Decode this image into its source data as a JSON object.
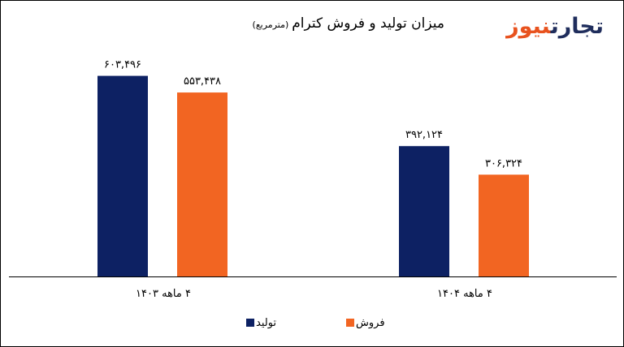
{
  "logo": {
    "part1": "تجارت",
    "part2": "نیوز"
  },
  "chart_data": {
    "type": "bar",
    "title": "میزان تولید و فروش کترام",
    "subtitle": "(مترمربع)",
    "categories": [
      "۴ ماهه ۱۴۰۳",
      "۴ ماهه ۱۴۰۴"
    ],
    "series": [
      {
        "name": "تولید",
        "color": "#0d2163",
        "values": [
          603496,
          392124
        ],
        "labels": [
          "۶۰۳,۴۹۶",
          "۳۹۲,۱۲۴"
        ]
      },
      {
        "name": "فروش",
        "color": "#f26522",
        "values": [
          553438,
          306324
        ],
        "labels": [
          "۵۵۳,۴۳۸",
          "۳۰۶,۳۲۴"
        ]
      }
    ],
    "ylim": [
      0,
      700000
    ],
    "grid": false,
    "legend_position": "bottom"
  }
}
